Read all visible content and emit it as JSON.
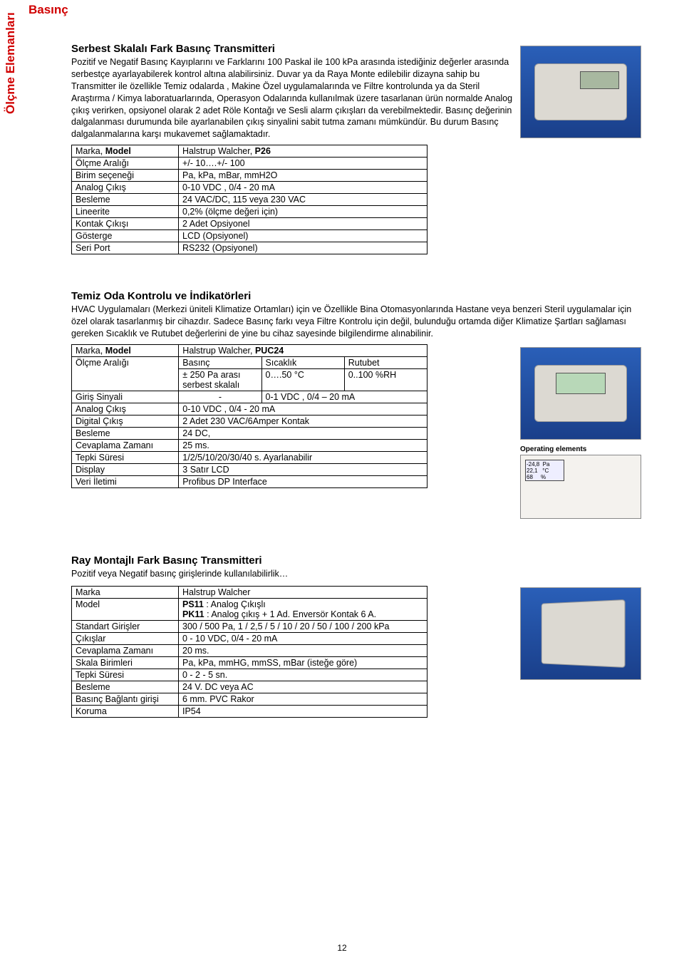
{
  "labels": {
    "top": "Basınç",
    "side": "Ölçme Elemanları",
    "page_num": "12"
  },
  "section1": {
    "title": "Serbest Skalalı  Fark Basınç Transmitteri",
    "desc": "Pozitif ve Negatif Basınç Kayıplarını ve Farklarını 100 Paskal ile 100 kPa arasında istediğiniz değerler arasında serbestçe ayarlayabilerek kontrol altına alabilirsiniz. Duvar ya da Raya Monte edilebilir dizayna sahip bu Transmitter ile özellikle Temiz odalarda , Makine Özel uygulamalarında ve Filtre kontrolunda ya da Steril Araştırma  /  Kimya laboratuarlarında, Operasyon Odalarında kullanılmak üzere tasarlanan ürün normalde Analog çıkış verirken, opsiyonel olarak 2 adet Röle Kontağı ve Sesli alarm çıkışları da verebilmektedir. Basınç değerinin dalgalanması durumunda bile ayarlanabilen çıkış sinyalini sabit tutma zamanı mümkündür. Bu durum Basınç dalgalanmalarına karşı mukavemet sağlamaktadır.",
    "rows": [
      [
        "Marka, <b>Model</b>",
        "Halstrup Walcher, <b>P26</b>"
      ],
      [
        "Ölçme Aralığı",
        "+/- 10….+/- 100"
      ],
      [
        "Birim seçeneği",
        "Pa, kPa, mBar, mmH2O"
      ],
      [
        "Analog Çıkış",
        "0-10 VDC , 0/4 - 20 mA"
      ],
      [
        "Besleme",
        "24 VAC/DC, 115 veya 230 VAC"
      ],
      [
        "Lineerite",
        "0,2% (ölçme değeri için)"
      ],
      [
        "Kontak Çıkışı",
        "2 Adet Opsiyonel"
      ],
      [
        "Gösterge",
        "LCD (Opsiyonel)"
      ],
      [
        "Seri Port",
        "RS232 (Opsiyonel)"
      ]
    ]
  },
  "section2": {
    "title": "Temiz Oda Kontrolu ve İndikatörleri",
    "desc": "HVAC Uygulamaları (Merkezi üniteli Klimatize Ortamları) için ve Özellikle Bina Otomasyonlarında Hastane veya benzeri Steril uygulamalar için özel olarak tasarlanmış bir cihazdır. Sadece Basınç farkı veya Filtre Kontrolu için değil, bulunduğu ortamda diğer Klimatize Şartları sağlaması gereken Sıcaklık ve Rutubet değerlerini de yine bu cihaz sayesinde bilgilendirme alınabilinir.",
    "row_model": [
      "Marka, <b>Model</b>",
      "Halstrup Walcher, <b>PUC24</b>"
    ],
    "row_range_label": "Ölçme Aralığı",
    "row_range_h": [
      "Basınç",
      "Sıcaklık",
      "Rutubet"
    ],
    "row_range_v": [
      "± 250 Pa arası serbest skalalı",
      "0….50 °C",
      "0..100 %RH"
    ],
    "row_input": [
      "Giriş Sinyali",
      "-",
      "0-1 VDC , 0/4 – 20 mA"
    ],
    "rows_rest": [
      [
        "Analog Çıkış",
        "0-10 VDC , 0/4 - 20 mA"
      ],
      [
        "Digital Çıkış",
        "2 Adet 230 VAC/6Amper Kontak"
      ],
      [
        "Besleme",
        "24 DC,"
      ],
      [
        "Cevaplama Zamanı",
        "25 ms."
      ],
      [
        "Tepki Süresi",
        " 1/2/5/10/20/30/40 s. Ayarlanabilir"
      ],
      [
        "Display",
        "3  Satır LCD"
      ],
      [
        "Veri İletimi",
        "Profibus DP Interface"
      ]
    ],
    "op_label": "Operating elements",
    "op_disp": "-24,8  Pa\n22,1   °C\n68     %"
  },
  "section3": {
    "title": "Ray Montajlı Fark Basınç Transmitteri",
    "desc": "Pozitif veya Negatif basınç girişlerinde kullanılabilirlik…",
    "rows": [
      [
        "Marka",
        "Halstrup Walcher"
      ],
      [
        "Model",
        "<b>PS11</b> : Analog Çıkışlı<br><b>PK11</b> : Analog çıkış + 1 Ad. Enversör Kontak 6 A."
      ],
      [
        "Standart Girişler",
        "300 / 500  Pa, 1 / 2,5 / 5 / 10 / 20 / 50 / 100 / 200  kPa"
      ],
      [
        "Çıkışlar",
        "0 - 10 VDC, 0/4 - 20 mA"
      ],
      [
        "Cevaplama Zamanı",
        "20 ms."
      ],
      [
        "Skala Birimleri",
        "Pa, kPa, mmHG, mmSS, mBar (isteğe göre)"
      ],
      [
        "Tepki Süresi",
        "0 - 2 - 5 sn."
      ],
      [
        "Besleme",
        "24 V. DC veya AC"
      ],
      [
        "Basınç Bağlantı girişi",
        "6 mm. PVC Rakor"
      ],
      [
        "Koruma",
        "IP54"
      ]
    ]
  }
}
